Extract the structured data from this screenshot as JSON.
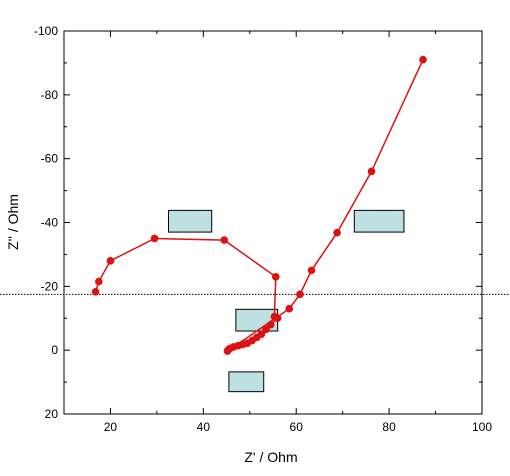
{
  "chart_data": {
    "type": "scatter",
    "title": "",
    "xlabel": "Z' / Ohm",
    "ylabel": "Z'' / Ohm",
    "xlim": [
      10,
      100
    ],
    "ylim": [
      20,
      -100
    ],
    "y_axis_inverted": true,
    "x_ticks": [
      20,
      40,
      60,
      80,
      100
    ],
    "y_ticks": [
      20,
      0,
      -20,
      -40,
      -60,
      -80,
      -100
    ],
    "grid": false,
    "legend": "none",
    "colors": {
      "series": "#dd1111",
      "axis": "#000000",
      "annotation_box_fill": "#bfe0e0",
      "reference_line": "#000000"
    },
    "series": [
      {
        "marker": "circle",
        "line": "solid",
        "points": [
          {
            "x": 16.8,
            "y": -18.3
          },
          {
            "x": 17.5,
            "y": -21.5
          },
          {
            "x": 20.0,
            "y": -28.0
          },
          {
            "x": 29.5,
            "y": -35.0
          },
          {
            "x": 44.5,
            "y": -34.5
          },
          {
            "x": 55.6,
            "y": -23.0
          },
          {
            "x": 55.3,
            "y": -10.5
          },
          {
            "x": 56.0,
            "y": -10.0
          },
          {
            "x": 54.5,
            "y": -8.0
          },
          {
            "x": 53.5,
            "y": -6.5
          },
          {
            "x": 52.5,
            "y": -5.0
          },
          {
            "x": 51.5,
            "y": -4.0
          },
          {
            "x": 50.5,
            "y": -3.0
          },
          {
            "x": 49.5,
            "y": -2.2
          },
          {
            "x": 48.5,
            "y": -1.8
          },
          {
            "x": 47.5,
            "y": -1.4
          },
          {
            "x": 46.5,
            "y": -1.0
          },
          {
            "x": 45.8,
            "y": -0.6
          },
          {
            "x": 45.4,
            "y": -0.2
          },
          {
            "x": 45.2,
            "y": 0.3
          },
          {
            "x": 58.5,
            "y": -13.0
          },
          {
            "x": 60.8,
            "y": -17.5
          },
          {
            "x": 63.3,
            "y": -25.0
          },
          {
            "x": 68.8,
            "y": -36.8
          },
          {
            "x": 76.2,
            "y": -56.0
          },
          {
            "x": 87.3,
            "y": -91.0
          }
        ]
      }
    ],
    "reference_lines": [
      {
        "orientation": "horizontal",
        "y": -17.5,
        "style": "dotted"
      }
    ],
    "annotation_boxes": [
      {
        "x0": 32.5,
        "x1": 41.8,
        "y0": -43.8,
        "y1": -37.0
      },
      {
        "x0": 72.5,
        "x1": 83.2,
        "y0": -43.8,
        "y1": -37.0
      },
      {
        "x0": 47.0,
        "x1": 56.0,
        "y0": -12.8,
        "y1": -6.0
      },
      {
        "x0": 45.5,
        "x1": 53.0,
        "y0": 6.8,
        "y1": 13.0
      }
    ]
  }
}
